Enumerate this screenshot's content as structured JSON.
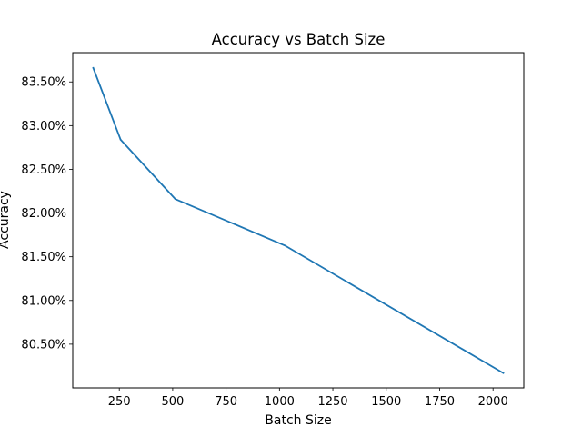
{
  "chart_data": {
    "type": "line",
    "title": "Accuracy vs Batch Size",
    "xlabel": "Batch Size",
    "ylabel": "Accuracy",
    "x": [
      128,
      256,
      512,
      1024,
      2048
    ],
    "series": [
      {
        "values": [
          83.66,
          82.84,
          82.16,
          81.63,
          80.17
        ],
        "color": "#1f77b4"
      }
    ],
    "x_ticks": [
      250,
      500,
      750,
      1000,
      1250,
      1500,
      1750,
      2000
    ],
    "x_tick_labels": [
      "250",
      "500",
      "750",
      "1000",
      "1250",
      "1500",
      "1750",
      "2000"
    ],
    "y_ticks": [
      80.5,
      81.0,
      81.5,
      82.0,
      82.5,
      83.0,
      83.5
    ],
    "y_tick_labels": [
      "80.50%",
      "81.00%",
      "81.50%",
      "82.00%",
      "82.50%",
      "83.00%",
      "83.50%"
    ],
    "xlim": [
      32,
      2144
    ],
    "ylim": [
      80.0,
      83.835
    ],
    "grid": false,
    "legend": false
  }
}
